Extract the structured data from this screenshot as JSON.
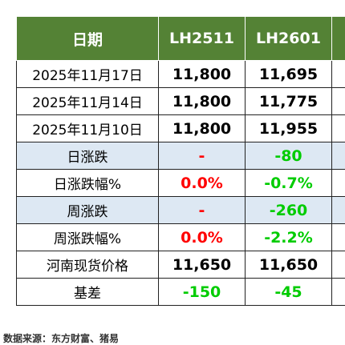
{
  "table": {
    "headers": [
      "日期",
      "LH2511",
      "LH2601",
      "L"
    ],
    "rows": [
      {
        "label": "2025年11月17日",
        "v1": "11,800",
        "v2": "11,695",
        "v3": "",
        "shade": false,
        "c1": "",
        "c2": ""
      },
      {
        "label": "2025年11月14日",
        "v1": "11,800",
        "v2": "11,775",
        "v3": "",
        "shade": false,
        "c1": "",
        "c2": ""
      },
      {
        "label": "2025年11月10日",
        "v1": "11,800",
        "v2": "11,955",
        "v3": "",
        "shade": false,
        "c1": "",
        "c2": ""
      },
      {
        "label": "日涨跌",
        "v1": "-",
        "v2": "-80",
        "v3": "",
        "shade": true,
        "c1": "pos",
        "c2": "neg"
      },
      {
        "label": "日涨跌幅%",
        "v1": "0.0%",
        "v2": "-0.7%",
        "v3": "",
        "shade": false,
        "c1": "pos",
        "c2": "neg"
      },
      {
        "label": "周涨跌",
        "v1": "-",
        "v2": "-260",
        "v3": "",
        "shade": true,
        "c1": "pos",
        "c2": "neg"
      },
      {
        "label": "周涨跌幅%",
        "v1": "0.0%",
        "v2": "-2.2%",
        "v3": "",
        "shade": false,
        "c1": "pos",
        "c2": "neg"
      },
      {
        "label": "河南现货价格",
        "v1": "11,650",
        "v2": "11,650",
        "v3": "",
        "shade": false,
        "c1": "",
        "c2": ""
      },
      {
        "label": "基差",
        "v1": "-150",
        "v2": "-45",
        "v3": "",
        "shade": false,
        "c1": "neg",
        "c2": "neg"
      }
    ]
  },
  "source": "数据来源：东方财富、猪易",
  "colors": {
    "header_bg": "#548235",
    "shade_bg": "#dde8f3",
    "negative": "#00cc00",
    "positive": "#ff0000"
  }
}
